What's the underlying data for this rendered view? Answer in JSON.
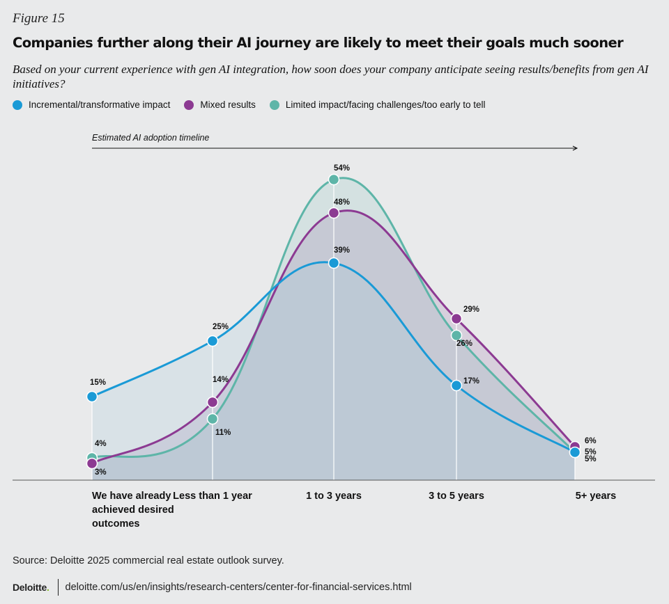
{
  "figure_label": "Figure 15",
  "title": "Companies further along their AI journey are likely to meet their goals much sooner",
  "subtitle": "Based on your current experience with gen AI integration, how soon does your company anticipate seeing results/benefits from gen AI initiatives?",
  "timeline_label": "Estimated AI adoption timeline",
  "source": "Source: Deloitte 2025 commercial real estate outlook survey.",
  "brand": "Deloitte",
  "brand_dot": ".",
  "url": "deloitte.com/us/en/insights/research-centers/center-for-financial-services.html",
  "chart_data": {
    "type": "line",
    "categories": [
      "We have already achieved desired outcomes",
      "Less than 1 year",
      "1 to 3 years",
      "3 to 5 years",
      "5+ years"
    ],
    "category_lines": [
      [
        "We have already",
        "achieved desired",
        "outcomes"
      ],
      [
        "Less than 1 year"
      ],
      [
        "1 to 3 years"
      ],
      [
        "3 to 5 years"
      ],
      [
        "5+ years"
      ]
    ],
    "ylim": [
      0,
      60
    ],
    "series": [
      {
        "name": "Incremental/transformative impact",
        "color": "#1a9ad6",
        "values": [
          15,
          25,
          39,
          17,
          5
        ],
        "labels": [
          "15%",
          "25%",
          "39%",
          "17%",
          "5%"
        ]
      },
      {
        "name": "Mixed results",
        "color": "#8c3a92",
        "values": [
          3,
          14,
          48,
          29,
          6
        ],
        "labels": [
          "3%",
          "14%",
          "48%",
          "29%",
          "6%"
        ]
      },
      {
        "name": "Limited impact/facing challenges/too early to tell",
        "color": "#5eb5a8",
        "values": [
          4,
          11,
          54,
          26,
          5
        ],
        "labels": [
          "4%",
          "11%",
          "54%",
          "26%",
          "5%"
        ]
      }
    ]
  }
}
